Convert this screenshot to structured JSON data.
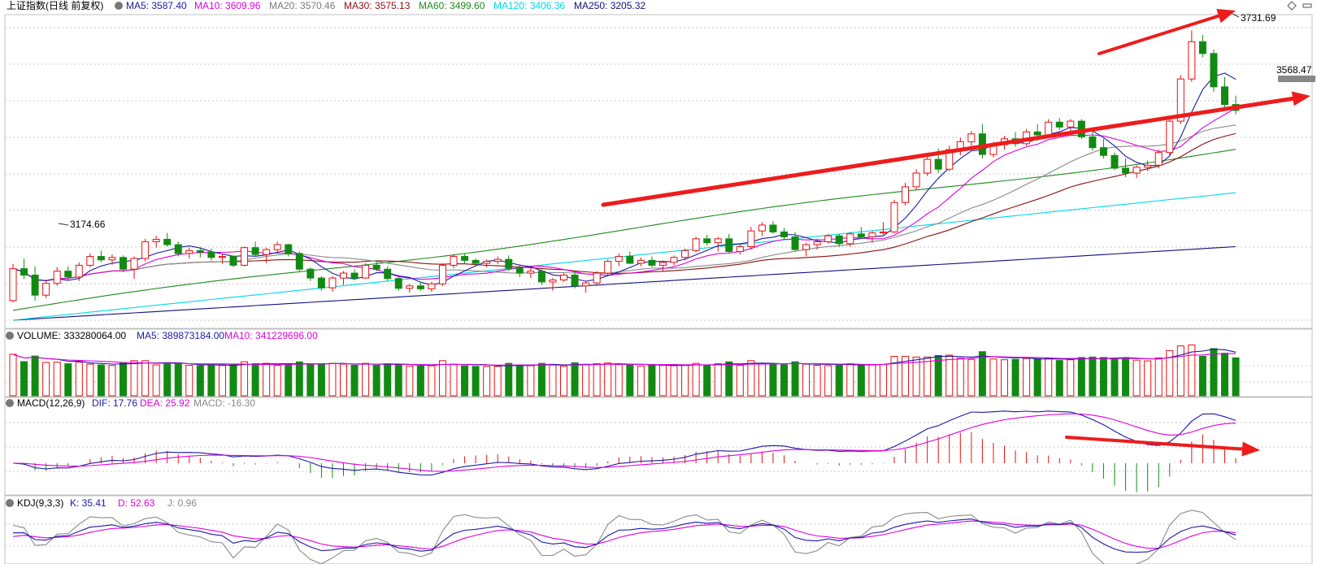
{
  "header": {
    "title": "上证指数(日线 前复权)",
    "ma_items": [
      {
        "label": "MA5: 3587.40",
        "color": "#1a1aa6"
      },
      {
        "label": "MA10: 3609.96",
        "color": "#e000e0"
      },
      {
        "label": "MA20: 3570.46",
        "color": "#7a7a7a"
      },
      {
        "label": "MA30: 3575.13",
        "color": "#8b1010"
      },
      {
        "label": "MA60: 3499.60",
        "color": "#1f8a1f"
      },
      {
        "label": "MA120: 3406.36",
        "color": "#00d8e8"
      },
      {
        "label": "MA250: 3205.32",
        "color": "#101080"
      }
    ],
    "right_icons": [
      "diamond-icon",
      "minimize-icon"
    ]
  },
  "price_annotations": {
    "high_label": "3731.69",
    "low_label": "3174.66",
    "last_price_label": "3568.47"
  },
  "volume_header": {
    "title": "VOLUME: 333280064.00",
    "ma5": "MA5: 389873184.00",
    "ma10": "MA10: 341229696.00"
  },
  "macd_header": {
    "title": "MACD(12,26,9)",
    "dif": "DIF: 17.76",
    "dea": "DEA: 25.92",
    "macd": "MACD: -16.30"
  },
  "kdj_header": {
    "title": "KDJ(9,3,3)",
    "k": "K: 35.41",
    "d": "D: 52.63",
    "j": "J: 0.96"
  },
  "colors": {
    "up": "#e81010",
    "down": "#128a12",
    "ma5": "#1a1aa6",
    "ma10": "#e000e0",
    "ma20": "#8a8a8a",
    "ma30": "#8b1010",
    "ma60": "#1f8a1f",
    "ma120": "#00d8e8",
    "ma250": "#101080",
    "arrow": "#ee1c1c",
    "grid": "#c8c8c8"
  },
  "chart_data": {
    "type": "candlestick",
    "price_range": [
      3130,
      3760
    ],
    "ohlc": [
      [
        3180,
        3255,
        3176,
        3245
      ],
      [
        3245,
        3265,
        3224,
        3232
      ],
      [
        3232,
        3250,
        3180,
        3191
      ],
      [
        3191,
        3222,
        3185,
        3215
      ],
      [
        3215,
        3248,
        3210,
        3240
      ],
      [
        3240,
        3250,
        3220,
        3228
      ],
      [
        3228,
        3258,
        3220,
        3252
      ],
      [
        3252,
        3276,
        3248,
        3270
      ],
      [
        3270,
        3282,
        3258,
        3263
      ],
      [
        3263,
        3274,
        3253,
        3268
      ],
      [
        3268,
        3272,
        3238,
        3244
      ],
      [
        3244,
        3270,
        3224,
        3266
      ],
      [
        3266,
        3306,
        3260,
        3300
      ],
      [
        3300,
        3312,
        3288,
        3305
      ],
      [
        3305,
        3318,
        3290,
        3294
      ],
      [
        3294,
        3300,
        3270,
        3276
      ],
      [
        3276,
        3288,
        3266,
        3282
      ],
      [
        3282,
        3288,
        3268,
        3279
      ],
      [
        3279,
        3286,
        3262,
        3268
      ],
      [
        3268,
        3276,
        3255,
        3270
      ],
      [
        3270,
        3272,
        3248,
        3252
      ],
      [
        3252,
        3290,
        3250,
        3288
      ],
      [
        3288,
        3300,
        3270,
        3274
      ],
      [
        3274,
        3288,
        3256,
        3284
      ],
      [
        3284,
        3300,
        3278,
        3294
      ],
      [
        3294,
        3296,
        3270,
        3276
      ],
      [
        3276,
        3280,
        3240,
        3244
      ],
      [
        3244,
        3248,
        3220,
        3226
      ],
      [
        3226,
        3230,
        3200,
        3206
      ],
      [
        3206,
        3230,
        3198,
        3226
      ],
      [
        3226,
        3240,
        3212,
        3236
      ],
      [
        3236,
        3244,
        3222,
        3226
      ],
      [
        3226,
        3256,
        3224,
        3252
      ],
      [
        3252,
        3262,
        3240,
        3244
      ],
      [
        3244,
        3250,
        3220,
        3225
      ],
      [
        3225,
        3228,
        3200,
        3205
      ],
      [
        3205,
        3214,
        3196,
        3210
      ],
      [
        3210,
        3218,
        3200,
        3204
      ],
      [
        3204,
        3218,
        3198,
        3214
      ],
      [
        3214,
        3256,
        3210,
        3252
      ],
      [
        3252,
        3274,
        3246,
        3270
      ],
      [
        3270,
        3276,
        3256,
        3262
      ],
      [
        3262,
        3266,
        3250,
        3256
      ],
      [
        3256,
        3264,
        3248,
        3260
      ],
      [
        3260,
        3270,
        3254,
        3264
      ],
      [
        3264,
        3272,
        3240,
        3246
      ],
      [
        3246,
        3252,
        3228,
        3236
      ],
      [
        3236,
        3246,
        3226,
        3240
      ],
      [
        3240,
        3244,
        3212,
        3218
      ],
      [
        3218,
        3226,
        3200,
        3222
      ],
      [
        3222,
        3236,
        3218,
        3232
      ],
      [
        3232,
        3240,
        3205,
        3210
      ],
      [
        3210,
        3220,
        3196,
        3216
      ],
      [
        3216,
        3240,
        3210,
        3236
      ],
      [
        3236,
        3264,
        3230,
        3260
      ],
      [
        3260,
        3276,
        3250,
        3270
      ],
      [
        3270,
        3280,
        3254,
        3256
      ],
      [
        3256,
        3268,
        3250,
        3262
      ],
      [
        3262,
        3270,
        3248,
        3252
      ],
      [
        3252,
        3262,
        3240,
        3258
      ],
      [
        3258,
        3272,
        3252,
        3268
      ],
      [
        3268,
        3286,
        3262,
        3282
      ],
      [
        3282,
        3310,
        3278,
        3306
      ],
      [
        3306,
        3314,
        3292,
        3298
      ],
      [
        3298,
        3310,
        3280,
        3306
      ],
      [
        3306,
        3316,
        3276,
        3280
      ],
      [
        3280,
        3296,
        3274,
        3290
      ],
      [
        3290,
        3330,
        3284,
        3322
      ],
      [
        3322,
        3340,
        3312,
        3334
      ],
      [
        3334,
        3342,
        3316,
        3320
      ],
      [
        3320,
        3328,
        3304,
        3310
      ],
      [
        3310,
        3320,
        3280,
        3284
      ],
      [
        3284,
        3298,
        3270,
        3294
      ],
      [
        3294,
        3306,
        3284,
        3300
      ],
      [
        3300,
        3316,
        3296,
        3312
      ],
      [
        3312,
        3316,
        3290,
        3296
      ],
      [
        3296,
        3320,
        3290,
        3316
      ],
      [
        3316,
        3330,
        3306,
        3310
      ],
      [
        3310,
        3322,
        3298,
        3318
      ],
      [
        3318,
        3340,
        3314,
        3320
      ],
      [
        3320,
        3386,
        3318,
        3380
      ],
      [
        3380,
        3420,
        3374,
        3412
      ],
      [
        3412,
        3448,
        3406,
        3440
      ],
      [
        3440,
        3476,
        3434,
        3468
      ],
      [
        3468,
        3490,
        3440,
        3448
      ],
      [
        3448,
        3496,
        3444,
        3488
      ],
      [
        3488,
        3512,
        3476,
        3504
      ],
      [
        3504,
        3526,
        3496,
        3520
      ],
      [
        3520,
        3540,
        3470,
        3478
      ],
      [
        3478,
        3504,
        3472,
        3498
      ],
      [
        3498,
        3516,
        3488,
        3510
      ],
      [
        3510,
        3524,
        3494,
        3500
      ],
      [
        3500,
        3530,
        3496,
        3524
      ],
      [
        3524,
        3540,
        3506,
        3518
      ],
      [
        3518,
        3550,
        3514,
        3544
      ],
      [
        3544,
        3552,
        3528,
        3534
      ],
      [
        3534,
        3550,
        3522,
        3546
      ],
      [
        3546,
        3550,
        3510,
        3514
      ],
      [
        3514,
        3528,
        3486,
        3492
      ],
      [
        3492,
        3510,
        3470,
        3476
      ],
      [
        3476,
        3482,
        3446,
        3450
      ],
      [
        3450,
        3470,
        3432,
        3440
      ],
      [
        3440,
        3456,
        3430,
        3452
      ],
      [
        3452,
        3466,
        3444,
        3456
      ],
      [
        3456,
        3488,
        3450,
        3482
      ],
      [
        3482,
        3552,
        3476,
        3546
      ],
      [
        3546,
        3640,
        3540,
        3632
      ],
      [
        3632,
        3731,
        3626,
        3708
      ],
      [
        3708,
        3722,
        3676,
        3684
      ],
      [
        3684,
        3692,
        3606,
        3616
      ],
      [
        3616,
        3636,
        3574,
        3580
      ],
      [
        3580,
        3598,
        3560,
        3568
      ]
    ]
  }
}
